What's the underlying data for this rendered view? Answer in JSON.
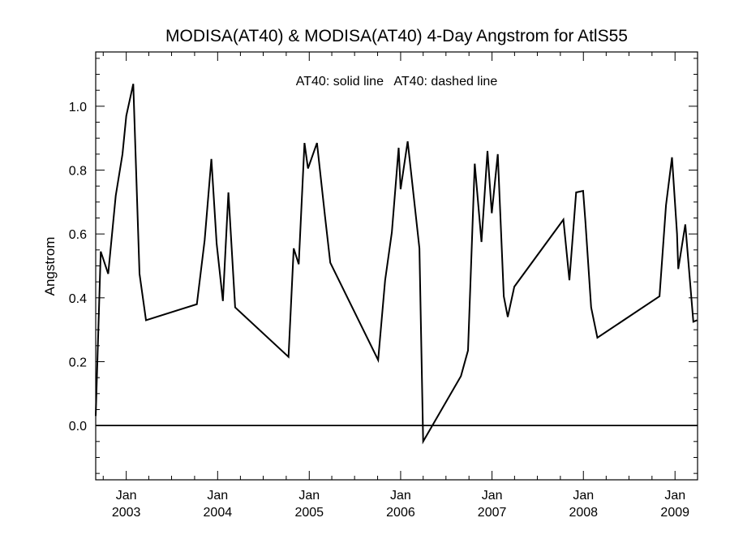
{
  "chart_data": {
    "type": "line",
    "title": "MODISA(AT40) & MODISA(AT40) 4-Day Angstrom for AtlS55",
    "annotation": "AT40: solid line   AT40: dashed line",
    "xlabel": "",
    "ylabel": "Angstrom",
    "xlim": [
      "2002-09-01",
      "2009-04-01"
    ],
    "ylim": [
      -0.17,
      1.17
    ],
    "yticks": [
      0.0,
      0.2,
      0.4,
      0.6,
      0.8,
      1.0
    ],
    "ytick_labels": [
      "0.0",
      "0.2",
      "0.4",
      "0.6",
      "0.8",
      "1.0"
    ],
    "xticks": [
      {
        "date": "2003-01-01",
        "month": "Jan",
        "year": "2003"
      },
      {
        "date": "2004-01-01",
        "month": "Jan",
        "year": "2004"
      },
      {
        "date": "2005-01-01",
        "month": "Jan",
        "year": "2005"
      },
      {
        "date": "2006-01-01",
        "month": "Jan",
        "year": "2006"
      },
      {
        "date": "2007-01-01",
        "month": "Jan",
        "year": "2007"
      },
      {
        "date": "2008-01-01",
        "month": "Jan",
        "year": "2008"
      },
      {
        "date": "2009-01-01",
        "month": "Jan",
        "year": "2009"
      }
    ],
    "reference_line": 0.0,
    "grid": false,
    "series": [
      {
        "style": "solid",
        "color": "#000000",
        "x": [
          "2002-09-01",
          "2002-09-21",
          "2002-10-21",
          "2002-11-20",
          "2002-12-17",
          "2003-01-01",
          "2003-01-29",
          "2003-02-23",
          "2003-03-21",
          "2003-10-10",
          "2003-11-10",
          "2003-12-07",
          "2003-12-28",
          "2004-01-22",
          "2004-02-13",
          "2004-03-11",
          "2004-10-10",
          "2004-10-31",
          "2004-11-20",
          "2004-12-13",
          "2004-12-27",
          "2005-02-01",
          "2005-03-05",
          "2005-03-26",
          "2005-10-03",
          "2005-10-31",
          "2005-11-27",
          "2005-12-24",
          "2006-01-01",
          "2006-01-29",
          "2006-03-17",
          "2006-04-01",
          "2006-08-30",
          "2006-09-27",
          "2006-10-24",
          "2006-11-20",
          "2006-12-14",
          "2006-12-31",
          "2007-01-24",
          "2007-02-17",
          "2007-03-05",
          "2007-03-31",
          "2007-10-13",
          "2007-11-06",
          "2007-12-03",
          "2007-12-31",
          "2008-01-09",
          "2008-02-01",
          "2008-02-26",
          "2008-10-31",
          "2008-11-26",
          "2008-12-20",
          "2009-01-09",
          "2009-01-14",
          "2009-02-11",
          "2009-03-15",
          "2009-03-30"
        ],
        "y": [
          0.03,
          0.545,
          0.475,
          0.72,
          0.85,
          0.97,
          1.07,
          0.475,
          0.33,
          0.38,
          0.58,
          0.835,
          0.57,
          0.39,
          0.73,
          0.37,
          0.215,
          0.555,
          0.505,
          0.885,
          0.805,
          0.885,
          0.655,
          0.51,
          0.205,
          0.455,
          0.605,
          0.87,
          0.74,
          0.89,
          0.555,
          -0.05,
          0.155,
          0.235,
          0.82,
          0.575,
          0.86,
          0.665,
          0.85,
          0.405,
          0.34,
          0.435,
          0.645,
          0.455,
          0.73,
          0.735,
          0.64,
          0.37,
          0.275,
          0.405,
          0.69,
          0.84,
          0.6,
          0.49,
          0.63,
          0.325,
          0.33
        ]
      }
    ]
  }
}
